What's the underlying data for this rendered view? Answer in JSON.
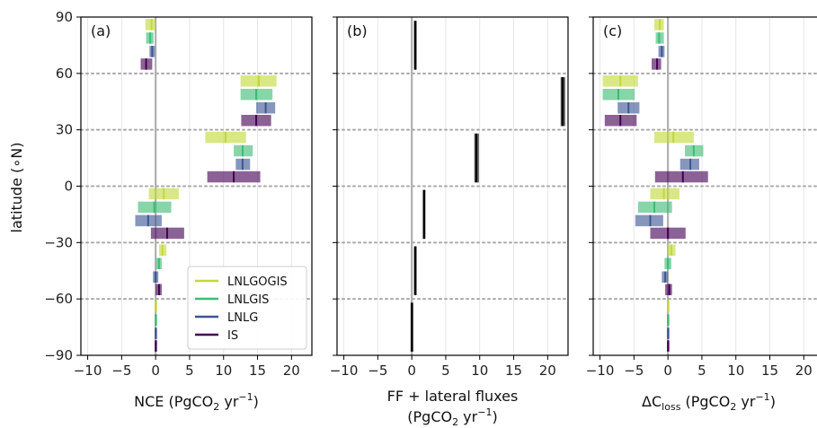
{
  "figure": {
    "ylabel": "latitude (∘N)",
    "yticks": [
      "90",
      "60",
      "30",
      "0",
      "−30",
      "−60",
      "−90"
    ],
    "xticks": [
      "−10",
      "−5",
      "0",
      "5",
      "10",
      "15",
      "20"
    ]
  },
  "chart_data": [
    {
      "type": "bar",
      "panel_label": "(a)",
      "xlabel_main": "NCE (PgCO",
      "xlabel_sub": "2",
      "xlabel_unit": " yr",
      "xlabel_sup": "−1",
      "xlabel_close": ")",
      "xlim": [
        -11,
        23
      ],
      "ylim": [
        -90,
        90
      ],
      "grid": true,
      "legend_position": "lower-right",
      "legend": [
        {
          "name": "LNLGOGIS",
          "color": "#c2d83a"
        },
        {
          "name": "LNLGIS",
          "color": "#3dbc74"
        },
        {
          "name": "LNLG",
          "color": "#3e5594"
        },
        {
          "name": "IS",
          "color": "#440154"
        }
      ],
      "series": [
        {
          "name": "LNLGOGIS",
          "color": "#c2d83a",
          "bins": [
            {
              "lat": [
                60,
                90
              ],
              "low": -1.5,
              "high": 0.0,
              "median": -0.6
            },
            {
              "lat": [
                30,
                60
              ],
              "low": 12.5,
              "high": 17.8,
              "median": 15.2
            },
            {
              "lat": [
                0,
                30
              ],
              "low": 7.3,
              "high": 13.3,
              "median": 10.3
            },
            {
              "lat": [
                -30,
                0
              ],
              "low": -1.0,
              "high": 3.4,
              "median": 1.2
            },
            {
              "lat": [
                -60,
                -30
              ],
              "low": 0.5,
              "high": 1.6,
              "median": 1.0
            },
            {
              "lat": [
                -90,
                -60
              ],
              "low": -0.1,
              "high": 0.1,
              "median": 0.0
            }
          ]
        },
        {
          "name": "LNLGIS",
          "color": "#3dbc74",
          "bins": [
            {
              "lat": [
                60,
                90
              ],
              "low": -1.4,
              "high": -0.3,
              "median": -0.8
            },
            {
              "lat": [
                30,
                60
              ],
              "low": 12.5,
              "high": 17.2,
              "median": 14.8
            },
            {
              "lat": [
                0,
                30
              ],
              "low": 11.5,
              "high": 14.3,
              "median": 12.8
            },
            {
              "lat": [
                -30,
                0
              ],
              "low": -2.6,
              "high": 2.3,
              "median": -0.2
            },
            {
              "lat": [
                -60,
                -30
              ],
              "low": 0.1,
              "high": 0.9,
              "median": 0.5
            },
            {
              "lat": [
                -90,
                -60
              ],
              "low": -0.1,
              "high": 0.1,
              "median": 0.0
            }
          ]
        },
        {
          "name": "LNLG",
          "color": "#3e5594",
          "bins": [
            {
              "lat": [
                60,
                90
              ],
              "low": -0.9,
              "high": -0.1,
              "median": -0.5
            },
            {
              "lat": [
                30,
                60
              ],
              "low": 14.8,
              "high": 17.6,
              "median": 16.2
            },
            {
              "lat": [
                0,
                30
              ],
              "low": 11.8,
              "high": 13.9,
              "median": 12.8
            },
            {
              "lat": [
                -30,
                0
              ],
              "low": -3.0,
              "high": 0.9,
              "median": -1.1
            },
            {
              "lat": [
                -60,
                -30
              ],
              "low": -0.4,
              "high": 0.4,
              "median": 0.0
            },
            {
              "lat": [
                -90,
                -60
              ],
              "low": -0.1,
              "high": 0.1,
              "median": 0.0
            }
          ]
        },
        {
          "name": "IS",
          "color": "#440154",
          "bins": [
            {
              "lat": [
                60,
                90
              ],
              "low": -2.2,
              "high": -0.5,
              "median": -1.4
            },
            {
              "lat": [
                30,
                60
              ],
              "low": 12.6,
              "high": 17.0,
              "median": 14.8
            },
            {
              "lat": [
                0,
                30
              ],
              "low": 7.6,
              "high": 15.4,
              "median": 11.5
            },
            {
              "lat": [
                -30,
                0
              ],
              "low": -0.7,
              "high": 4.2,
              "median": 1.7
            },
            {
              "lat": [
                -60,
                -30
              ],
              "low": 0.0,
              "high": 0.9,
              "median": 0.5
            },
            {
              "lat": [
                -90,
                -60
              ],
              "low": -0.1,
              "high": 0.1,
              "median": 0.0
            }
          ]
        }
      ]
    },
    {
      "type": "bar",
      "panel_label": "(b)",
      "xlabel_line1": "FF + lateral fluxes",
      "xlabel_line2": "(PgCO",
      "xlabel_sub": "2",
      "xlabel_unit": " yr",
      "xlabel_sup": "−1",
      "xlabel_close": ")",
      "xlim": [
        -11,
        23
      ],
      "ylim": [
        -90,
        90
      ],
      "grid": true,
      "series": [
        {
          "name": "FF + lateral fluxes",
          "color": "#000000",
          "bins": [
            {
              "lat": [
                60,
                90
              ],
              "low": 0.4,
              "high": 0.6,
              "median": 0.5
            },
            {
              "lat": [
                30,
                60
              ],
              "low": 21.9,
              "high": 22.6,
              "median": 22.2
            },
            {
              "lat": [
                0,
                30
              ],
              "low": 9.2,
              "high": 9.9,
              "median": 9.5
            },
            {
              "lat": [
                -30,
                0
              ],
              "low": 1.7,
              "high": 2.0,
              "median": 1.8
            },
            {
              "lat": [
                -60,
                -30
              ],
              "low": 0.4,
              "high": 0.6,
              "median": 0.5
            },
            {
              "lat": [
                -90,
                -60
              ],
              "low": -0.1,
              "high": 0.1,
              "median": 0.0
            }
          ]
        }
      ]
    },
    {
      "type": "bar",
      "panel_label": "(c)",
      "xlabel_main": "ΔC",
      "xlabel_sub": "loss",
      "xlabel_unit": " (PgCO",
      "xlabel_sub2": "2",
      "xlabel_unit2": " yr",
      "xlabel_sup": "−1",
      "xlabel_close": ")",
      "xlim": [
        -11,
        23
      ],
      "ylim": [
        -90,
        90
      ],
      "grid": true,
      "series": [
        {
          "name": "LNLGOGIS",
          "color": "#c2d83a",
          "bins": [
            {
              "lat": [
                60,
                90
              ],
              "low": -2.0,
              "high": -0.6,
              "median": -1.2
            },
            {
              "lat": [
                30,
                60
              ],
              "low": -9.6,
              "high": -4.4,
              "median": -7.0
            },
            {
              "lat": [
                0,
                30
              ],
              "low": -2.0,
              "high": 3.8,
              "median": 0.8
            },
            {
              "lat": [
                -30,
                0
              ],
              "low": -2.6,
              "high": 1.7,
              "median": -0.6
            },
            {
              "lat": [
                -60,
                -30
              ],
              "low": -0.1,
              "high": 1.1,
              "median": 0.5
            },
            {
              "lat": [
                -90,
                -60
              ],
              "low": -0.1,
              "high": 0.1,
              "median": 0.0
            }
          ]
        },
        {
          "name": "LNLGIS",
          "color": "#3dbc74",
          "bins": [
            {
              "lat": [
                60,
                90
              ],
              "low": -1.8,
              "high": -0.6,
              "median": -1.3
            },
            {
              "lat": [
                30,
                60
              ],
              "low": -9.6,
              "high": -4.9,
              "median": -7.3
            },
            {
              "lat": [
                0,
                30
              ],
              "low": 2.5,
              "high": 5.2,
              "median": 3.8
            },
            {
              "lat": [
                -30,
                0
              ],
              "low": -4.4,
              "high": 0.6,
              "median": -2.0
            },
            {
              "lat": [
                -60,
                -30
              ],
              "low": -0.5,
              "high": 0.5,
              "median": 0.0
            },
            {
              "lat": [
                -90,
                -60
              ],
              "low": -0.1,
              "high": 0.1,
              "median": 0.0
            }
          ]
        },
        {
          "name": "LNLG",
          "color": "#3e5594",
          "bins": [
            {
              "lat": [
                60,
                90
              ],
              "low": -1.4,
              "high": -0.5,
              "median": -0.9
            },
            {
              "lat": [
                30,
                60
              ],
              "low": -7.4,
              "high": -4.2,
              "median": -5.8
            },
            {
              "lat": [
                0,
                30
              ],
              "low": 1.8,
              "high": 4.6,
              "median": 3.3
            },
            {
              "lat": [
                -30,
                0
              ],
              "low": -4.8,
              "high": -0.7,
              "median": -2.6
            },
            {
              "lat": [
                -60,
                -30
              ],
              "low": -0.9,
              "high": 0.0,
              "median": -0.4
            },
            {
              "lat": [
                -90,
                -60
              ],
              "low": -0.1,
              "high": 0.1,
              "median": 0.0
            }
          ]
        },
        {
          "name": "IS",
          "color": "#440154",
          "bins": [
            {
              "lat": [
                60,
                90
              ],
              "low": -2.4,
              "high": -1.0,
              "median": -1.6
            },
            {
              "lat": [
                30,
                60
              ],
              "low": -9.3,
              "high": -4.6,
              "median": -7.0
            },
            {
              "lat": [
                0,
                30
              ],
              "low": -1.9,
              "high": 5.9,
              "median": 2.2
            },
            {
              "lat": [
                -30,
                0
              ],
              "low": -2.6,
              "high": 2.6,
              "median": 0.0
            },
            {
              "lat": [
                -60,
                -30
              ],
              "low": -0.4,
              "high": 0.6,
              "median": 0.2
            },
            {
              "lat": [
                -90,
                -60
              ],
              "low": -0.1,
              "high": 0.1,
              "median": 0.0
            }
          ]
        }
      ]
    }
  ]
}
